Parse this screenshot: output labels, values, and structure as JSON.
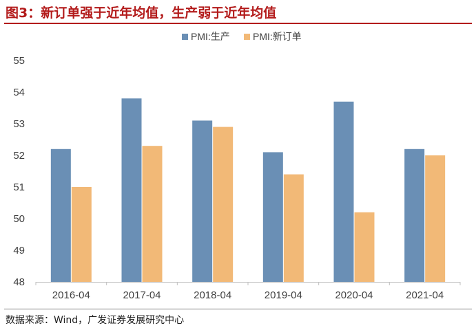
{
  "title": "图3：新订单强于近年均值，生产弱于近年均值",
  "source": "数据来源：Wind，广发证券发展研究中心",
  "colors": {
    "title": "#b31b1b",
    "production": "#6a8fb5",
    "new_orders": "#f2b977"
  },
  "chart_data": {
    "type": "bar",
    "categories": [
      "2016-04",
      "2017-04",
      "2018-04",
      "2019-04",
      "2020-04",
      "2021-04"
    ],
    "series": [
      {
        "name": "PMI:生产",
        "values": [
          52.2,
          53.8,
          53.1,
          52.1,
          53.7,
          52.2
        ]
      },
      {
        "name": "PMI:新订单",
        "values": [
          51.0,
          52.3,
          52.9,
          51.4,
          50.2,
          52.0
        ]
      }
    ],
    "ylim": [
      48,
      55
    ],
    "yticks": [
      "48",
      "49",
      "50",
      "51",
      "52",
      "53",
      "54",
      "55"
    ],
    "xlabel": "",
    "ylabel": "",
    "legend_position": "top-center",
    "grid": false
  }
}
